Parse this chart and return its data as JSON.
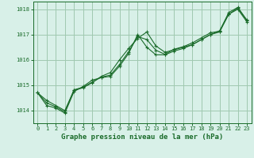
{
  "background_color": "#d8f0e8",
  "grid_color": "#a0c8b0",
  "line_color": "#1a6b2a",
  "title": "Graphe pression niveau de la mer (hPa)",
  "title_fontsize": 6.5,
  "tick_fontsize": 5.0,
  "ylim": [
    1013.5,
    1018.3
  ],
  "xlim": [
    -0.5,
    23.5
  ],
  "yticks": [
    1014,
    1015,
    1016,
    1017,
    1018
  ],
  "xticks": [
    0,
    1,
    2,
    3,
    4,
    5,
    6,
    7,
    8,
    9,
    10,
    11,
    12,
    13,
    14,
    15,
    16,
    17,
    18,
    19,
    20,
    21,
    22,
    23
  ],
  "series": [
    [
      1014.7,
      1014.4,
      1014.2,
      1014.0,
      1014.8,
      1014.9,
      1015.1,
      1015.35,
      1015.5,
      1016.0,
      1016.45,
      1016.85,
      1017.1,
      1016.55,
      1016.3,
      1016.4,
      1016.5,
      1016.6,
      1016.8,
      1017.0,
      1017.1,
      1017.8,
      1018.05,
      1017.55
    ],
    [
      1014.7,
      1014.2,
      1014.1,
      1013.9,
      1014.75,
      1014.95,
      1015.2,
      1015.3,
      1015.35,
      1015.75,
      1016.25,
      1017.0,
      1016.5,
      1016.2,
      1016.2,
      1016.35,
      1016.45,
      1016.6,
      1016.8,
      1017.0,
      1017.15,
      1017.8,
      1018.0,
      1017.5
    ],
    [
      1014.7,
      1014.3,
      1014.15,
      1013.95,
      1014.82,
      1014.92,
      1015.12,
      1015.32,
      1015.4,
      1015.82,
      1016.32,
      1016.92,
      1016.8,
      1016.38,
      1016.22,
      1016.42,
      1016.52,
      1016.67,
      1016.87,
      1017.07,
      1017.13,
      1017.87,
      1018.07,
      1017.57
    ]
  ]
}
